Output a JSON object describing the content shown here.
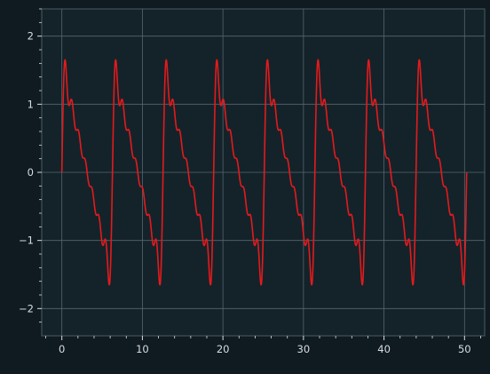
{
  "chart_data": {
    "type": "line",
    "title": "",
    "xlabel": "",
    "ylabel": "",
    "xlim": [
      -2.5,
      52.5
    ],
    "ylim": [
      -2.4,
      2.4
    ],
    "x_ticks": [
      0,
      10,
      20,
      30,
      40,
      50
    ],
    "y_ticks": [
      -2,
      -1,
      0,
      1,
      2
    ],
    "x_tick_labels": [
      "0",
      "10",
      "20",
      "30",
      "40",
      "50"
    ],
    "y_tick_labels": [
      "−2",
      "−1",
      "0",
      "1",
      "2"
    ],
    "x_minor_step": 2,
    "y_minor_step": 0.2,
    "grid": true,
    "legend": "none",
    "series": [
      {
        "color": "#e41a1c",
        "description": "Fourier approximation of a sawtooth wave with period 2π over x = 0 to 16π",
        "harmonics": 7,
        "x_range": [
          0,
          50.265
        ],
        "amplitude_scale": 0.5
      }
    ]
  },
  "colors": {
    "background": "#0f1b21",
    "axes_face": "#14232a",
    "spine": "#4d5b61",
    "grid": "#56666e",
    "text": "#d9dde0"
  }
}
